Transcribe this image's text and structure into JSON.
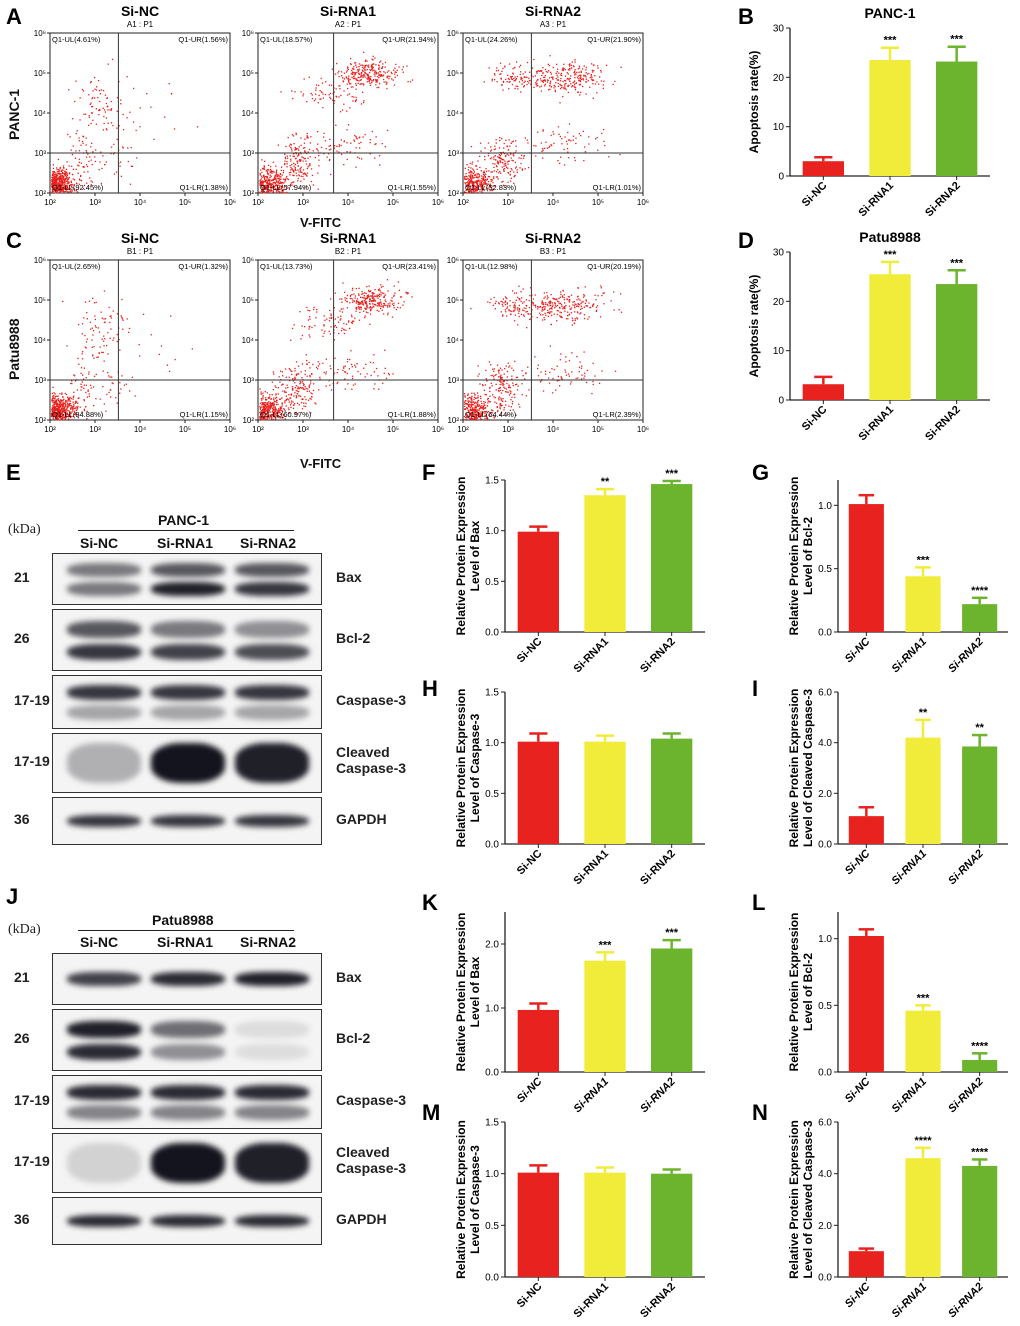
{
  "panel_letters": {
    "A": "A",
    "B": "B",
    "C": "C",
    "D": "D",
    "E": "E",
    "F": "F",
    "G": "G",
    "H": "H",
    "I": "I",
    "J": "J",
    "K": "K",
    "L": "L",
    "M": "M",
    "N": "N"
  },
  "flow": {
    "row1_label": "PANC-1",
    "row2_label": "Patu8988",
    "x_axis_label": "V-FITC",
    "panels": [
      {
        "title": "Si-NC",
        "sub": "A1 : P1",
        "ul": "Q1-UL(4.61%)",
        "ur": "Q1-UR(1.56%)",
        "ll": "Q1-LL(92.45%)",
        "lr": "Q1-LR(1.38%)"
      },
      {
        "title": "Si-RNA1",
        "sub": "A2 : P1",
        "ul": "Q1-UL(18.57%)",
        "ur": "Q1-UR(21.94%)",
        "ll": "Q1-LL(57.94%)",
        "lr": "Q1-LR(1.55%)"
      },
      {
        "title": "Si-RNA2",
        "sub": "A3 : P1",
        "ul": "Q1-UL(24.26%)",
        "ur": "Q1-UR(21.90%)",
        "ll": "Q1-LL(52.83%)",
        "lr": "Q1-LR(1.01%)"
      },
      {
        "title": "Si-NC",
        "sub": "B1 : P1",
        "ul": "Q1-UL(2.65%)",
        "ur": "Q1-UR(1.32%)",
        "ll": "Q1-LL(94.88%)",
        "lr": "Q1-LR(1.15%)"
      },
      {
        "title": "Si-RNA1",
        "sub": "B2 : P1",
        "ul": "Q1-UL(13.73%)",
        "ur": "Q1-UR(23.41%)",
        "ll": "Q1-LL(60.97%)",
        "lr": "Q1-LR(1.88%)"
      },
      {
        "title": "Si-RNA2",
        "sub": "B3 : P1",
        "ul": "Q1-UL(12.98%)",
        "ur": "Q1-UR(20.19%)",
        "ll": "Q1-LL(64.44%)",
        "lr": "Q1-LR(2.39%)"
      }
    ],
    "ticks": [
      "10²",
      "10³",
      "10⁴",
      "10⁵",
      "10⁶"
    ],
    "dot_color": "#e8201c"
  },
  "blots": {
    "kda_label": "(kDa)",
    "lanes": [
      "Si-NC",
      "Si-RNA1",
      "Si-RNA2"
    ],
    "panc_title": "PANC-1",
    "patu_title": "Patu8988",
    "panc": [
      {
        "kda": "21",
        "name": "Bax",
        "name2": ""
      },
      {
        "kda": "26",
        "name": "Bcl-2",
        "name2": ""
      },
      {
        "kda": "17-19",
        "name": "Caspase-3",
        "name2": ""
      },
      {
        "kda": "17-19",
        "name": "Cleaved",
        "name2": "Caspase-3"
      },
      {
        "kda": "36",
        "name": "GAPDH",
        "name2": ""
      }
    ],
    "patu": [
      {
        "kda": "21",
        "name": "Bax",
        "name2": ""
      },
      {
        "kda": "26",
        "name": "Bcl-2",
        "name2": ""
      },
      {
        "kda": "17-19",
        "name": "Caspase-3",
        "name2": ""
      },
      {
        "kda": "17-19",
        "name": "Cleaved",
        "name2": "Caspase-3"
      },
      {
        "kda": "36",
        "name": "GAPDH",
        "name2": ""
      }
    ]
  },
  "colors": {
    "red": "#e8231f",
    "yellow": "#f1ec3a",
    "green": "#6cb42e"
  },
  "chart_data": [
    {
      "id": "B",
      "type": "bar",
      "title": "PANC-1",
      "ylabel": "Apoptosis rate(%)",
      "categories": [
        "Si-NC",
        "Si-RNA1",
        "Si-RNA2"
      ],
      "values": [
        3.0,
        23.5,
        23.2
      ],
      "errors": [
        0.8,
        2.5,
        3.0
      ],
      "sig": [
        "",
        "***",
        "***"
      ],
      "ylim": [
        0,
        30
      ],
      "yticks": [
        "0",
        "10",
        "20",
        "30"
      ],
      "italic_x": false
    },
    {
      "id": "D",
      "type": "bar",
      "title": "Patu8988",
      "ylabel": "Apoptosis rate(%)",
      "categories": [
        "Si-NC",
        "Si-RNA1",
        "Si-RNA2"
      ],
      "values": [
        3.2,
        25.5,
        23.5
      ],
      "errors": [
        1.5,
        2.5,
        2.8
      ],
      "sig": [
        "",
        "***",
        "***"
      ],
      "ylim": [
        0,
        30
      ],
      "yticks": [
        "0",
        "10",
        "20",
        "30"
      ],
      "italic_x": false
    },
    {
      "id": "F",
      "type": "bar",
      "title": "",
      "ylabel": "Relative Protein Expression",
      "ylabel2": "Level of Bax",
      "categories": [
        "Si-NC",
        "Si-RNA1",
        "Si-RNA2"
      ],
      "values": [
        0.99,
        1.35,
        1.46
      ],
      "errors": [
        0.05,
        0.06,
        0.03
      ],
      "sig": [
        "",
        "**",
        "***"
      ],
      "ylim": [
        0,
        1.5
      ],
      "yticks": [
        "0.0",
        "0.5",
        "1.0",
        "1.5"
      ],
      "italic_x": false
    },
    {
      "id": "G",
      "type": "bar",
      "title": "",
      "ylabel": "Relative Protein Expression",
      "ylabel2": "Level of Bcl-2",
      "categories": [
        "Si-NC",
        "Si-RNA1",
        "Si-RNA2"
      ],
      "values": [
        1.01,
        0.44,
        0.22
      ],
      "errors": [
        0.07,
        0.07,
        0.05
      ],
      "sig": [
        "",
        "***",
        "****"
      ],
      "ylim": [
        0,
        1.2
      ],
      "yticks": [
        "0.0",
        "0.5",
        "1.0"
      ],
      "italic_x": true
    },
    {
      "id": "H",
      "type": "bar",
      "title": "",
      "ylabel": "Relative Protein Expression",
      "ylabel2": "Level of Caspase-3",
      "categories": [
        "Si-NC",
        "Si-RNA1",
        "Si-RNA2"
      ],
      "values": [
        1.01,
        1.01,
        1.04
      ],
      "errors": [
        0.08,
        0.06,
        0.05
      ],
      "sig": [
        "",
        "",
        ""
      ],
      "ylim": [
        0,
        1.5
      ],
      "yticks": [
        "0.0",
        "0.5",
        "1.0",
        "1.5"
      ],
      "italic_x": false
    },
    {
      "id": "I",
      "type": "bar",
      "title": "",
      "ylabel": "Relative Protein Expression",
      "ylabel2": "Level of Cleaved Caspase-3",
      "categories": [
        "Si-NC",
        "Si-RNA1",
        "Si-RNA2"
      ],
      "values": [
        1.1,
        4.2,
        3.85
      ],
      "errors": [
        0.35,
        0.7,
        0.45
      ],
      "sig": [
        "",
        "**",
        "**"
      ],
      "ylim": [
        0,
        6.0
      ],
      "yticks": [
        "0.0",
        "2.0",
        "4.0",
        "6.0"
      ],
      "italic_x": true
    },
    {
      "id": "K",
      "type": "bar",
      "title": "",
      "ylabel": "Relative Protein Expression",
      "ylabel2": "Level of Bax",
      "categories": [
        "Si-NC",
        "Si-RNA1",
        "Si-RNA2"
      ],
      "values": [
        0.97,
        1.74,
        1.93
      ],
      "errors": [
        0.1,
        0.13,
        0.13
      ],
      "sig": [
        "",
        "***",
        "***"
      ],
      "ylim": [
        0,
        2.5
      ],
      "yticks": [
        "0.0",
        "1.0",
        "2.0"
      ],
      "italic_x": true
    },
    {
      "id": "L",
      "type": "bar",
      "title": "",
      "ylabel": "Relative Protein Expression",
      "ylabel2": "Level of Bcl-2",
      "categories": [
        "Si-NC",
        "Si-RNA1",
        "Si-RNA2"
      ],
      "values": [
        1.02,
        0.46,
        0.09
      ],
      "errors": [
        0.05,
        0.04,
        0.05
      ],
      "sig": [
        "",
        "***",
        "****"
      ],
      "ylim": [
        0,
        1.2
      ],
      "yticks": [
        "0.0",
        "0.5",
        "1.0"
      ],
      "italic_x": true
    },
    {
      "id": "M",
      "type": "bar",
      "title": "",
      "ylabel": "Relative Protein Expression",
      "ylabel2": "Level of Caspase-3",
      "categories": [
        "Si-NC",
        "Si-RNA1",
        "Si-RNA2"
      ],
      "values": [
        1.01,
        1.01,
        1.0
      ],
      "errors": [
        0.07,
        0.05,
        0.04
      ],
      "sig": [
        "",
        "",
        ""
      ],
      "ylim": [
        0,
        1.5
      ],
      "yticks": [
        "0.0",
        "0.5",
        "1.0",
        "1.5"
      ],
      "italic_x": false
    },
    {
      "id": "N",
      "type": "bar",
      "title": "",
      "ylabel": "Relative Protein Expression",
      "ylabel2": "Level of Cleaved Caspase-3",
      "categories": [
        "Si-NC",
        "Si-RNA1",
        "Si-RNA2"
      ],
      "values": [
        1.0,
        4.6,
        4.3
      ],
      "errors": [
        0.1,
        0.4,
        0.25
      ],
      "sig": [
        "",
        "****",
        "****"
      ],
      "ylim": [
        0,
        6.0
      ],
      "yticks": [
        "0.0",
        "2.0",
        "4.0",
        "6.0"
      ],
      "italic_x": true
    }
  ]
}
